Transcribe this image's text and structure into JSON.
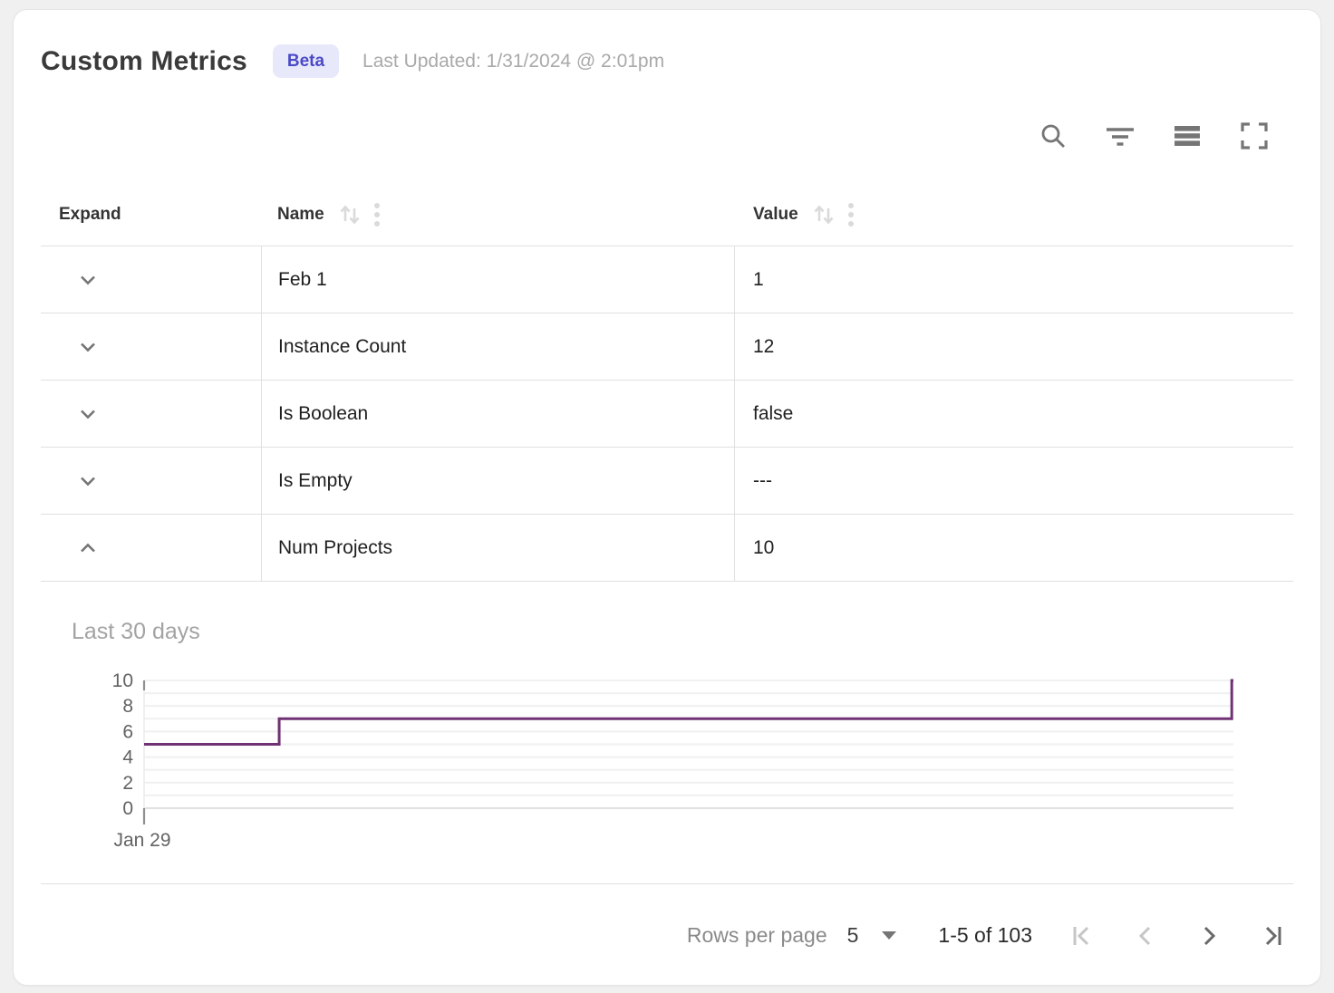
{
  "header": {
    "title": "Custom Metrics",
    "badge": "Beta",
    "last_updated": "Last Updated: 1/31/2024 @ 2:01pm"
  },
  "toolbar": {
    "icons": [
      "search",
      "filter",
      "density",
      "fullscreen"
    ]
  },
  "table": {
    "columns": [
      {
        "label": "Expand",
        "sortable": false
      },
      {
        "label": "Name",
        "sortable": true
      },
      {
        "label": "Value",
        "sortable": true
      }
    ],
    "rows": [
      {
        "name": "Feb 1",
        "value": "1",
        "expanded": false
      },
      {
        "name": "Instance Count",
        "value": "12",
        "expanded": false
      },
      {
        "name": "Is Boolean",
        "value": "false",
        "expanded": false
      },
      {
        "name": "Is Empty",
        "value": "---",
        "expanded": false
      },
      {
        "name": "Num Projects",
        "value": "10",
        "expanded": true
      }
    ]
  },
  "chart_data": {
    "type": "line",
    "step": "after",
    "title": "Last 30 days",
    "series": [
      {
        "name": "Num Projects",
        "color": "#703273",
        "points": [
          [
            0,
            5
          ],
          [
            0.124,
            5
          ],
          [
            0.124,
            7
          ],
          [
            0.9985,
            7
          ],
          [
            0.9985,
            10
          ],
          [
            1,
            10
          ]
        ]
      }
    ],
    "ylim": [
      0,
      10
    ],
    "y_ticks": [
      0,
      2,
      4,
      6,
      8,
      10
    ],
    "x_tick_labels": [
      "Jan 29"
    ],
    "grid": "horizontal-every-unit",
    "legend": "none"
  },
  "footer": {
    "rows_per_page_label": "Rows per page",
    "rows_per_page_value": "5",
    "range_text": "1-5 of 103",
    "pagination": {
      "first_enabled": false,
      "prev_enabled": false,
      "next_enabled": true,
      "last_enabled": true
    }
  },
  "colors": {
    "badge_bg": "#e8e8fb",
    "badge_text": "#4a4ac6",
    "chart_line": "#703273",
    "grid_border": "#e0e0e0",
    "icon_gray": "#757575",
    "muted_text": "#a9a9a9"
  }
}
